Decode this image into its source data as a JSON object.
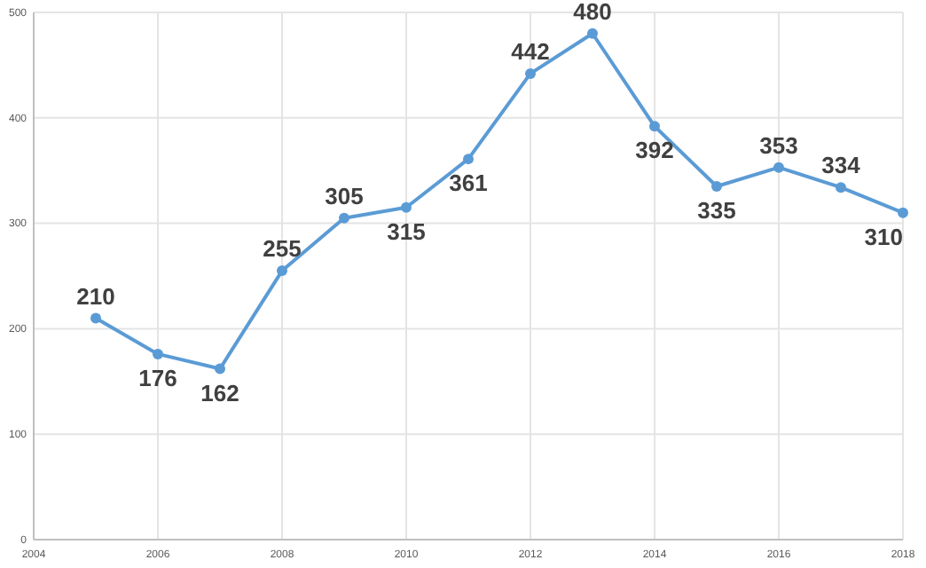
{
  "chart_data": {
    "type": "line",
    "x": [
      2005,
      2006,
      2007,
      2008,
      2009,
      2010,
      2011,
      2012,
      2013,
      2014,
      2015,
      2016,
      2017,
      2018
    ],
    "series": [
      {
        "color": "#5b9bd5",
        "values": [
          210,
          176,
          162,
          255,
          305,
          315,
          361,
          442,
          480,
          392,
          335,
          353,
          334,
          310
        ]
      }
    ],
    "xlim": [
      2004,
      2018
    ],
    "xticks": [
      2004,
      2006,
      2008,
      2010,
      2012,
      2014,
      2016,
      2018
    ],
    "ylim": [
      0,
      500
    ],
    "yticks": [
      0,
      100,
      200,
      300,
      400,
      500
    ],
    "grid": true,
    "marker": "circle",
    "line_style": "solid",
    "data_labels": true
  }
}
